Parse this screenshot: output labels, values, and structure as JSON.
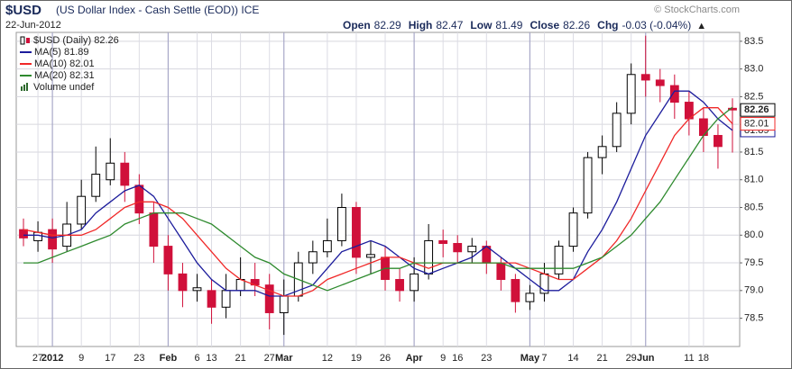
{
  "header": {
    "symbol": "$USD",
    "description": "(US Dollar Index - Cash Settle (EOD)) ICE",
    "date": "22-Jun-2012",
    "watermark": "© StockCharts.com",
    "stat_labels": [
      "Open",
      "High",
      "Low",
      "Close",
      "Chg"
    ],
    "change": "-0.03 (-0.04%)"
  },
  "chart_data": {
    "type": "candlestick",
    "price_legend": "$USD (Daily) 82.26",
    "volume_legend": "Volume undef",
    "up_color": "#000000",
    "down_color": "#d0103a",
    "categories": [
      null,
      "27",
      "2012",
      null,
      "9",
      null,
      "17",
      null,
      "23",
      null,
      "Feb",
      null,
      "6",
      "13",
      null,
      "21",
      null,
      "27",
      "Mar",
      null,
      null,
      "12",
      null,
      "19",
      null,
      "26",
      null,
      "Apr",
      null,
      "9",
      "16",
      null,
      "23",
      null,
      null,
      "May",
      "7",
      null,
      "14",
      null,
      "21",
      null,
      "29",
      "Jun",
      null,
      null,
      "11",
      "18",
      null,
      null
    ],
    "open": [
      80.1,
      79.9,
      80.1,
      79.8,
      80.2,
      80.7,
      81.0,
      81.3,
      80.9,
      80.4,
      79.8,
      79.3,
      79.0,
      79.0,
      78.7,
      79.0,
      79.2,
      79.1,
      78.6,
      78.9,
      79.5,
      79.7,
      79.9,
      80.5,
      79.6,
      79.6,
      79.2,
      79.0,
      79.3,
      79.9,
      79.85,
      79.7,
      79.8,
      79.5,
      79.2,
      78.8,
      78.95,
      79.3,
      79.8,
      80.4,
      81.4,
      81.6,
      82.2,
      82.9,
      82.8,
      82.7,
      82.4,
      82.1,
      81.8,
      82.29
    ],
    "high": [
      80.3,
      80.25,
      80.3,
      80.6,
      81.0,
      81.6,
      81.75,
      81.5,
      81.1,
      80.6,
      80.0,
      79.5,
      79.3,
      79.2,
      79.3,
      79.6,
      79.5,
      79.3,
      79.2,
      79.7,
      79.9,
      80.3,
      80.75,
      80.6,
      79.9,
      79.8,
      79.4,
      79.6,
      80.2,
      80.1,
      80.0,
      79.95,
      79.9,
      79.6,
      79.3,
      79.1,
      79.5,
      79.9,
      80.5,
      81.5,
      81.8,
      82.4,
      83.1,
      83.6,
      83.0,
      82.9,
      82.6,
      82.3,
      82.0,
      82.47
    ],
    "low": [
      79.8,
      79.7,
      79.5,
      79.7,
      80.1,
      80.6,
      80.9,
      80.6,
      80.2,
      79.5,
      79.0,
      78.7,
      78.8,
      78.4,
      78.5,
      78.9,
      78.9,
      78.3,
      78.2,
      78.8,
      79.3,
      79.6,
      79.8,
      79.3,
      79.3,
      79.0,
      78.8,
      78.8,
      79.2,
      79.6,
      79.5,
      79.5,
      79.3,
      79.0,
      78.6,
      78.65,
      78.8,
      79.2,
      79.7,
      80.3,
      81.1,
      81.5,
      82.0,
      82.5,
      82.4,
      82.1,
      81.8,
      81.5,
      81.2,
      81.49
    ],
    "close": [
      79.95,
      80.05,
      79.75,
      80.2,
      80.7,
      81.1,
      81.3,
      80.9,
      80.4,
      79.8,
      79.3,
      79.0,
      79.05,
      78.7,
      79.0,
      79.2,
      79.1,
      78.6,
      78.9,
      79.5,
      79.7,
      79.9,
      80.5,
      79.6,
      79.65,
      79.2,
      79.0,
      79.3,
      79.9,
      79.85,
      79.7,
      79.8,
      79.5,
      79.2,
      78.8,
      78.95,
      79.3,
      79.8,
      80.4,
      81.4,
      81.6,
      82.2,
      82.9,
      82.8,
      82.7,
      82.4,
      82.1,
      81.8,
      81.6,
      82.26
    ],
    "series": [
      {
        "name": "MA(5) 81.89",
        "color": "#1c1c9c",
        "tag": true,
        "values": [
          80.0,
          80.0,
          79.95,
          80.0,
          80.1,
          80.4,
          80.6,
          80.8,
          80.9,
          80.7,
          80.3,
          79.9,
          79.5,
          79.2,
          79.0,
          79.0,
          79.0,
          78.9,
          78.9,
          79.0,
          79.1,
          79.4,
          79.7,
          79.8,
          79.9,
          79.8,
          79.6,
          79.4,
          79.3,
          79.4,
          79.5,
          79.6,
          79.8,
          79.6,
          79.4,
          79.2,
          79.0,
          79.0,
          79.2,
          79.7,
          80.1,
          80.6,
          81.2,
          81.8,
          82.2,
          82.6,
          82.6,
          82.4,
          82.1,
          81.89
        ]
      },
      {
        "name": "MA(10) 82.01",
        "color": "#f02828",
        "tag": true,
        "values": [
          80.1,
          80.05,
          80.0,
          80.0,
          80.0,
          80.1,
          80.3,
          80.5,
          80.6,
          80.6,
          80.5,
          80.3,
          80.0,
          79.7,
          79.4,
          79.2,
          79.1,
          79.0,
          78.9,
          78.9,
          79.0,
          79.2,
          79.3,
          79.4,
          79.5,
          79.6,
          79.6,
          79.5,
          79.4,
          79.5,
          79.5,
          79.5,
          79.5,
          79.5,
          79.5,
          79.4,
          79.3,
          79.2,
          79.2,
          79.4,
          79.6,
          79.9,
          80.3,
          80.8,
          81.3,
          81.8,
          82.1,
          82.3,
          82.3,
          82.01
        ]
      },
      {
        "name": "MA(20) 82.31",
        "color": "#2e8a2e",
        "tag": false,
        "values": [
          79.5,
          79.5,
          79.6,
          79.7,
          79.8,
          79.9,
          80.0,
          80.2,
          80.3,
          80.4,
          80.4,
          80.4,
          80.3,
          80.2,
          80.0,
          79.8,
          79.6,
          79.5,
          79.3,
          79.2,
          79.1,
          79.0,
          79.1,
          79.2,
          79.3,
          79.4,
          79.4,
          79.5,
          79.5,
          79.5,
          79.5,
          79.5,
          79.5,
          79.5,
          79.4,
          79.4,
          79.4,
          79.4,
          79.4,
          79.5,
          79.6,
          79.8,
          80.0,
          80.3,
          80.6,
          81.0,
          81.4,
          81.8,
          82.1,
          82.31
        ]
      }
    ],
    "ylim": [
      77.99,
      83.66
    ],
    "yticks": [
      78.5,
      {
        "value": 79,
        "label": "79.0"
      },
      79.5,
      {
        "value": 80,
        "label": "80.0"
      },
      80.5,
      {
        "value": 81,
        "label": "81.0"
      },
      81.5,
      {
        "value": 82,
        "label": "82.0"
      },
      82.5,
      {
        "value": 83,
        "label": "83.0"
      },
      83.5
    ],
    "grid": true
  }
}
